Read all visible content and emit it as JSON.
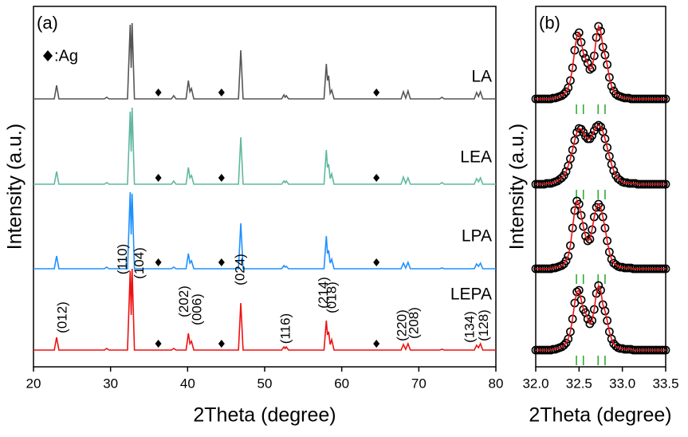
{
  "chart_data": [
    {
      "type": "line",
      "panel_label": "(a)",
      "x_label": "2Theta (degree)",
      "y_label": "Intensity (a.u.)",
      "xlim": [
        20,
        80
      ],
      "xticks": [
        20,
        30,
        40,
        50,
        60,
        70,
        80
      ],
      "ag_label": ":Ag",
      "ag_x": [
        36.2,
        44.4,
        64.5
      ],
      "x": [
        20,
        22.7,
        23.0,
        23.3,
        29.2,
        29.5,
        29.8,
        32.2,
        32.55,
        32.68,
        32.8,
        33.1,
        37.9,
        38.2,
        38.5,
        39.8,
        40.1,
        40.3,
        40.5,
        40.8,
        46.6,
        46.9,
        47.2,
        52.2,
        52.5,
        52.65,
        52.8,
        53.1,
        57.7,
        58.0,
        58.15,
        58.3,
        58.5,
        58.7,
        59.0,
        67.7,
        68.0,
        68.3,
        68.6,
        68.9,
        72.7,
        73.0,
        73.3,
        77.2,
        77.5,
        77.75,
        78.0,
        78.3,
        80
      ],
      "series": [
        {
          "name": "LA",
          "color": "#555555",
          "values": [
            1,
            1,
            18,
            1,
            1,
            3,
            1,
            1,
            94,
            40,
            96,
            1,
            1,
            5,
            1,
            1,
            24,
            10,
            14,
            1,
            1,
            62,
            1,
            1,
            6,
            3,
            5,
            1,
            1,
            45,
            24,
            30,
            8,
            12,
            1,
            1,
            10,
            2,
            11,
            1,
            1,
            3,
            1,
            1,
            9,
            4,
            10,
            1,
            1
          ]
        },
        {
          "name": "LEA",
          "color": "#5fb89f",
          "values": [
            1,
            1,
            17,
            1,
            1,
            3,
            1,
            1,
            92,
            42,
            97,
            1,
            1,
            5,
            1,
            1,
            22,
            9,
            12,
            1,
            1,
            60,
            1,
            1,
            5,
            3,
            5,
            1,
            1,
            44,
            22,
            26,
            8,
            14,
            1,
            1,
            10,
            2,
            9,
            1,
            1,
            3,
            1,
            1,
            8,
            4,
            9,
            1,
            1
          ]
        },
        {
          "name": "LPA",
          "color": "#1e90ff",
          "values": [
            1,
            1,
            17,
            1,
            1,
            3,
            1,
            1,
            97,
            44,
            95,
            1,
            1,
            3,
            1,
            1,
            20,
            8,
            11,
            1,
            1,
            58,
            1,
            1,
            5,
            3,
            4,
            1,
            1,
            42,
            20,
            24,
            8,
            13,
            1,
            1,
            8,
            2,
            9,
            1,
            1,
            2,
            1,
            1,
            7,
            4,
            8,
            1,
            1
          ]
        },
        {
          "name": "LEPA",
          "color": "#ee1111",
          "values": [
            1,
            1,
            17,
            1,
            1,
            3,
            1,
            1,
            100,
            45,
            103,
            1,
            1,
            3,
            1,
            1,
            22,
            9,
            12,
            1,
            1,
            60,
            1,
            1,
            5,
            3,
            5,
            1,
            1,
            38,
            20,
            24,
            8,
            14,
            1,
            1,
            8,
            2,
            9,
            1,
            1,
            2,
            1,
            1,
            7,
            4,
            9,
            1,
            1
          ]
        }
      ],
      "peak_labels": [
        {
          "text": "(012)",
          "x": 23.0
        },
        {
          "text": "(110)",
          "x": 32.55
        },
        {
          "text": "(104)",
          "x": 32.8
        },
        {
          "text": "(202)",
          "x": 40.1
        },
        {
          "text": "(006)",
          "x": 40.5
        },
        {
          "text": "(024)",
          "x": 46.9
        },
        {
          "text": "(116)",
          "x": 52.5
        },
        {
          "text": "(214)",
          "x": 58.0
        },
        {
          "text": "(018)",
          "x": 58.3
        },
        {
          "text": "(220)",
          "x": 68.0
        },
        {
          "text": "(208)",
          "x": 68.6
        },
        {
          "text": "(134)",
          "x": 77.5
        },
        {
          "text": "(128)",
          "x": 78.0
        }
      ]
    },
    {
      "type": "scatter",
      "panel_label": "(b)",
      "x_label": "2Theta (degree)",
      "y_label": "Intensity (a.u.)",
      "xlim": [
        32,
        33.5
      ],
      "xticks": [
        {
          "value": 32,
          "label": "32.0"
        },
        32.5,
        {
          "value": 33,
          "label": "33.0"
        },
        33.5
      ],
      "line_color": "#ee1111",
      "marker_color": "#000000",
      "reference_x": [
        32.47,
        32.55,
        32.72,
        32.8
      ],
      "reference_color": "#33aa33",
      "x": [
        32.0,
        32.025,
        32.05,
        32.075,
        32.1,
        32.125,
        32.15,
        32.175,
        32.2,
        32.225,
        32.25,
        32.275,
        32.3,
        32.325,
        32.35,
        32.375,
        32.4,
        32.425,
        32.45,
        32.475,
        32.5,
        32.525,
        32.55,
        32.575,
        32.6,
        32.625,
        32.65,
        32.675,
        32.7,
        32.725,
        32.75,
        32.775,
        32.8,
        32.825,
        32.85,
        32.875,
        32.9,
        32.925,
        32.95,
        32.975,
        33.0,
        33.025,
        33.05,
        33.075,
        33.1,
        33.125,
        33.15,
        33.175,
        33.2,
        33.225,
        33.25,
        33.275,
        33.3,
        33.325,
        33.35,
        33.375,
        33.4,
        33.425,
        33.45,
        33.475,
        33.5
      ],
      "series": [
        {
          "name": "LA",
          "values": [
            1,
            1,
            1,
            1,
            1,
            1,
            1,
            1,
            2,
            2,
            3,
            4,
            5,
            7,
            10,
            15,
            24,
            40,
            62,
            80,
            84,
            72,
            58,
            52,
            46,
            38,
            40,
            55,
            78,
            92,
            86,
            66,
            56,
            44,
            28,
            17,
            11,
            7,
            5,
            4,
            3,
            2,
            2,
            2,
            1,
            1,
            1,
            1,
            1,
            1,
            1,
            1,
            1,
            1,
            1,
            1,
            1,
            1,
            1,
            1,
            1
          ]
        },
        {
          "name": "LEA",
          "values": [
            1,
            1,
            1,
            1,
            1,
            2,
            2,
            2,
            3,
            4,
            5,
            7,
            9,
            12,
            17,
            24,
            33,
            44,
            56,
            66,
            71,
            70,
            66,
            61,
            58,
            58,
            62,
            68,
            73,
            75,
            73,
            67,
            58,
            47,
            36,
            26,
            18,
            12,
            8,
            6,
            4,
            3,
            3,
            2,
            2,
            2,
            2,
            1,
            1,
            1,
            1,
            1,
            1,
            1,
            1,
            1,
            1,
            1,
            1,
            1,
            1
          ]
        },
        {
          "name": "LPA",
          "values": [
            1,
            1,
            1,
            1,
            1,
            1,
            1,
            1,
            2,
            2,
            3,
            4,
            5,
            7,
            11,
            17,
            30,
            52,
            74,
            86,
            82,
            68,
            54,
            42,
            36,
            38,
            50,
            66,
            78,
            82,
            78,
            66,
            52,
            36,
            22,
            13,
            8,
            6,
            4,
            3,
            3,
            2,
            2,
            2,
            2,
            1,
            1,
            1,
            1,
            1,
            1,
            1,
            1,
            1,
            1,
            1,
            1,
            1,
            1,
            1,
            1
          ]
        },
        {
          "name": "LEPA",
          "values": [
            1,
            1,
            1,
            1,
            1,
            1,
            1,
            1,
            2,
            2,
            3,
            4,
            5,
            7,
            10,
            15,
            24,
            40,
            60,
            74,
            76,
            64,
            52,
            48,
            40,
            34,
            38,
            52,
            72,
            82,
            76,
            58,
            50,
            38,
            24,
            15,
            9,
            6,
            4,
            3,
            3,
            2,
            2,
            2,
            2,
            1,
            1,
            1,
            1,
            1,
            1,
            1,
            1,
            1,
            1,
            1,
            1,
            1,
            1,
            1,
            1
          ]
        }
      ]
    }
  ]
}
